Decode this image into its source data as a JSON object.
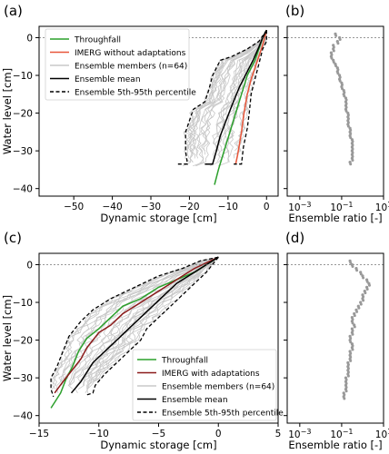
{
  "chart_data": [
    {
      "panel": "(a)",
      "type": "line",
      "xlabel": "Dynamic storage [cm]",
      "ylabel": "Water level [cm]",
      "xlim": [
        -59,
        3
      ],
      "ylim": [
        -42,
        3
      ],
      "xticks": [
        -50,
        -40,
        -30,
        -20,
        -10,
        0
      ],
      "yticks": [
        0,
        -10,
        -20,
        -30,
        -40
      ],
      "zero_line": 0,
      "legend": {
        "position": "upper-left",
        "entries": [
          "Throughfall",
          "IMERG without adaptations",
          "Ensemble members (n=64)",
          "Ensemble mean",
          "Ensemble 5th-95th percentile"
        ]
      },
      "series": [
        {
          "name": "Throughfall",
          "color": "#2ca02c",
          "style": "solid",
          "points": [
            [
              0,
              2
            ],
            [
              -1,
              0
            ],
            [
              -2,
              -3
            ],
            [
              -3,
              -6
            ],
            [
              -5,
              -10
            ],
            [
              -6.5,
              -15
            ],
            [
              -8,
              -20
            ],
            [
              -9.5,
              -25
            ],
            [
              -11,
              -30
            ],
            [
              -12.5,
              -35
            ],
            [
              -13.5,
              -39
            ]
          ]
        },
        {
          "name": "IMERG without adaptations",
          "color": "#e8563a",
          "style": "solid",
          "points": [
            [
              0,
              2
            ],
            [
              -0.5,
              0
            ],
            [
              -1,
              -2
            ],
            [
              -2,
              -5
            ],
            [
              -3,
              -8
            ],
            [
              -4,
              -11
            ],
            [
              -5,
              -15
            ],
            [
              -5.5,
              -18
            ],
            [
              -6,
              -21
            ],
            [
              -6.5,
              -25
            ],
            [
              -7,
              -28
            ],
            [
              -7.5,
              -31
            ],
            [
              -8,
              -33.5
            ]
          ]
        },
        {
          "name": "Ensemble mean",
          "color": "#000000",
          "style": "solid",
          "points": [
            [
              0,
              2
            ],
            [
              -1,
              0
            ],
            [
              -2,
              -2.5
            ],
            [
              -3.5,
              -6
            ],
            [
              -5,
              -9
            ],
            [
              -7,
              -13
            ],
            [
              -9,
              -18
            ],
            [
              -10.5,
              -22
            ],
            [
              -12,
              -26
            ],
            [
              -13,
              -30
            ],
            [
              -14,
              -33.5
            ],
            [
              -16,
              -33.5
            ]
          ]
        },
        {
          "name": "Ensemble 5th-95th percentile",
          "color": "#000000",
          "style": "dashed",
          "points": [
            [
              0,
              2
            ],
            [
              -2,
              -1
            ],
            [
              -5,
              -3
            ],
            [
              -9,
              -5
            ],
            [
              -12,
              -6
            ],
            [
              -14,
              -10
            ],
            [
              -15,
              -14
            ],
            [
              -16,
              -17
            ],
            [
              -19,
              -19
            ],
            [
              -20,
              -22
            ],
            [
              -21,
              -25
            ],
            [
              -21,
              -30
            ],
            [
              -20.5,
              -33.5
            ],
            [
              -23,
              -33.5
            ]
          ]
        },
        {
          "name": "Ensemble 5th-95th percentile (upper)",
          "color": "#000000",
          "style": "dashed",
          "points": [
            [
              0,
              2
            ],
            [
              0,
              -1
            ],
            [
              -1,
              -3
            ],
            [
              -2,
              -7
            ],
            [
              -3,
              -11
            ],
            [
              -4,
              -15
            ],
            [
              -4.5,
              -20
            ],
            [
              -5,
              -24
            ],
            [
              -6,
              -29
            ],
            [
              -6.5,
              -33.5
            ],
            [
              -8.5,
              -33.5
            ]
          ]
        }
      ]
    },
    {
      "panel": "(b)",
      "type": "scatter",
      "xlabel": "Ensemble ratio [-]",
      "xscale": "log",
      "xlim": [
        -3.6,
        1
      ],
      "ylim": [
        -42,
        3
      ],
      "xticks": [
        "10^-3",
        "10^-1",
        "10^1"
      ],
      "zero_line": 0,
      "points": [
        [
          -1.3,
          1
        ],
        [
          -1.1,
          0
        ],
        [
          -1.2,
          -1
        ],
        [
          -1.4,
          -2
        ],
        [
          -1.4,
          -3
        ],
        [
          -1.5,
          -4
        ],
        [
          -1.5,
          -5
        ],
        [
          -1.4,
          -6
        ],
        [
          -1.3,
          -7
        ],
        [
          -1.2,
          -8
        ],
        [
          -1.2,
          -9
        ],
        [
          -1.1,
          -10
        ],
        [
          -1.1,
          -11
        ],
        [
          -1.0,
          -12
        ],
        [
          -1.0,
          -13
        ],
        [
          -0.9,
          -14
        ],
        [
          -0.9,
          -15
        ],
        [
          -0.8,
          -16
        ],
        [
          -0.8,
          -17
        ],
        [
          -0.8,
          -18
        ],
        [
          -0.8,
          -19
        ],
        [
          -0.7,
          -20
        ],
        [
          -0.7,
          -21
        ],
        [
          -0.7,
          -22
        ],
        [
          -0.7,
          -23
        ],
        [
          -0.6,
          -24
        ],
        [
          -0.6,
          -25
        ],
        [
          -0.6,
          -26
        ],
        [
          -0.5,
          -27
        ],
        [
          -0.5,
          -28
        ],
        [
          -0.5,
          -29
        ],
        [
          -0.5,
          -30
        ],
        [
          -0.5,
          -31
        ],
        [
          -0.5,
          -32
        ],
        [
          -0.6,
          -33
        ]
      ]
    },
    {
      "panel": "(c)",
      "type": "line",
      "xlabel": "Dynamic storage [cm]",
      "ylabel": "Water level [cm]",
      "xlim": [
        -15,
        5
      ],
      "ylim": [
        -42,
        3
      ],
      "xticks": [
        -15,
        -10,
        -5,
        0,
        5
      ],
      "yticks": [
        0,
        -10,
        -20,
        -30,
        -40
      ],
      "zero_line": 0,
      "legend": {
        "position": "lower-right",
        "entries": [
          "Throughfall",
          "IMERG with adaptations",
          "Ensemble members (n=64)",
          "Ensemble mean",
          "Ensemble 5th-95th percentile"
        ]
      },
      "series": [
        {
          "name": "Throughfall",
          "color": "#2ca02c",
          "style": "solid",
          "points": [
            [
              0,
              2
            ],
            [
              -1,
              0
            ],
            [
              -2,
              -2
            ],
            [
              -3.5,
              -4
            ],
            [
              -5,
              -6
            ],
            [
              -6.5,
              -9
            ],
            [
              -8,
              -11
            ],
            [
              -9,
              -14
            ],
            [
              -10,
              -17
            ],
            [
              -11,
              -19.5
            ],
            [
              -11.7,
              -23
            ],
            [
              -12.2,
              -27
            ],
            [
              -12.7,
              -30
            ],
            [
              -13.2,
              -34
            ],
            [
              -13.6,
              -36
            ],
            [
              -14,
              -38
            ]
          ]
        },
        {
          "name": "IMERG with adaptations",
          "color": "#8b1a1a",
          "style": "solid",
          "points": [
            [
              0,
              2
            ],
            [
              -1,
              0.5
            ],
            [
              -2,
              -1
            ],
            [
              -3,
              -3
            ],
            [
              -4,
              -5
            ],
            [
              -5,
              -7
            ],
            [
              -6,
              -9
            ],
            [
              -7,
              -11
            ],
            [
              -8,
              -13
            ],
            [
              -9,
              -16
            ],
            [
              -10,
              -18
            ],
            [
              -10.5,
              -20
            ],
            [
              -11,
              -22
            ],
            [
              -11.5,
              -25
            ],
            [
              -12.5,
              -29
            ],
            [
              -13,
              -31
            ],
            [
              -13.7,
              -34
            ]
          ]
        },
        {
          "name": "Ensemble mean",
          "color": "#000000",
          "style": "solid",
          "points": [
            [
              0,
              2
            ],
            [
              -1,
              0
            ],
            [
              -2,
              -2
            ],
            [
              -3.5,
              -5
            ],
            [
              -4.5,
              -8
            ],
            [
              -5.5,
              -11
            ],
            [
              -6.5,
              -14
            ],
            [
              -7.5,
              -17
            ],
            [
              -8.5,
              -20
            ],
            [
              -9.5,
              -23
            ],
            [
              -10.5,
              -26
            ],
            [
              -11,
              -28.5
            ],
            [
              -11.5,
              -31
            ],
            [
              -12.3,
              -34
            ]
          ]
        },
        {
          "name": "Ensemble 5th-95th percentile",
          "color": "#000000",
          "style": "dashed",
          "points": [
            [
              0,
              2
            ],
            [
              -1.5,
              1
            ],
            [
              -3,
              -1
            ],
            [
              -5,
              -3
            ],
            [
              -7,
              -6
            ],
            [
              -9,
              -9
            ],
            [
              -10.5,
              -12
            ],
            [
              -11.5,
              -15
            ],
            [
              -12.5,
              -19
            ],
            [
              -13,
              -23
            ],
            [
              -13.5,
              -27
            ],
            [
              -14,
              -30
            ],
            [
              -14,
              -33
            ],
            [
              -13.8,
              -35
            ]
          ]
        },
        {
          "name": "Ensemble 5th-95th percentile (upper)",
          "color": "#000000",
          "style": "dashed",
          "points": [
            [
              0,
              2
            ],
            [
              -0.5,
              0
            ],
            [
              -1,
              -2
            ],
            [
              -2,
              -5
            ],
            [
              -3,
              -8
            ],
            [
              -4,
              -11
            ],
            [
              -5,
              -14
            ],
            [
              -6,
              -17
            ],
            [
              -6.5,
              -20
            ],
            [
              -7.5,
              -23
            ],
            [
              -8.5,
              -26
            ],
            [
              -9.5,
              -29
            ],
            [
              -10.3,
              -32
            ],
            [
              -10.5,
              -34
            ],
            [
              -11,
              -34.5
            ]
          ]
        }
      ]
    },
    {
      "panel": "(d)",
      "type": "scatter",
      "xlabel": "Ensemble ratio [-]",
      "xscale": "log",
      "xlim": [
        -3.6,
        1
      ],
      "ylim": [
        -42,
        3
      ],
      "xticks": [
        "10^-3",
        "10^-1",
        "10^1"
      ],
      "zero_line": 0,
      "points": [
        [
          -0.6,
          1
        ],
        [
          -0.5,
          0
        ],
        [
          -0.3,
          -1
        ],
        [
          -0.1,
          -2
        ],
        [
          0.0,
          -3
        ],
        [
          0.2,
          -4
        ],
        [
          0.3,
          -5
        ],
        [
          0.2,
          -6
        ],
        [
          0.1,
          -7
        ],
        [
          0.0,
          -8
        ],
        [
          0.0,
          -9
        ],
        [
          -0.1,
          -10
        ],
        [
          -0.2,
          -11
        ],
        [
          -0.3,
          -12
        ],
        [
          -0.4,
          -13
        ],
        [
          -0.5,
          -14
        ],
        [
          -0.5,
          -15
        ],
        [
          -0.4,
          -16
        ],
        [
          -0.5,
          -17
        ],
        [
          -0.5,
          -18
        ],
        [
          -0.6,
          -19
        ],
        [
          -0.6,
          -20
        ],
        [
          -0.5,
          -21
        ],
        [
          -0.5,
          -22
        ],
        [
          -0.6,
          -23
        ],
        [
          -0.6,
          -24
        ],
        [
          -0.6,
          -25
        ],
        [
          -0.7,
          -26
        ],
        [
          -0.7,
          -27
        ],
        [
          -0.7,
          -28
        ],
        [
          -0.7,
          -29
        ],
        [
          -0.8,
          -30
        ],
        [
          -0.8,
          -31
        ],
        [
          -0.8,
          -32
        ],
        [
          -0.8,
          -33
        ],
        [
          -0.9,
          -34
        ],
        [
          -0.9,
          -35
        ]
      ]
    }
  ]
}
